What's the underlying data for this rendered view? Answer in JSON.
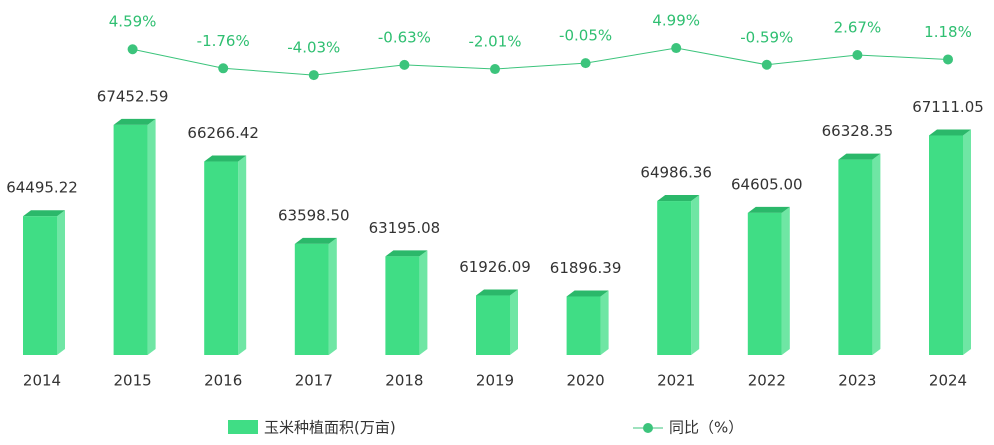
{
  "chart_data": {
    "type": "bar",
    "categories": [
      "2014",
      "2015",
      "2016",
      "2017",
      "2018",
      "2019",
      "2020",
      "2021",
      "2022",
      "2023",
      "2024"
    ],
    "series": [
      {
        "name": "玉米种植面积(万亩)",
        "color": "#40dd85",
        "values": [
          64495.22,
          67452.59,
          66266.42,
          63598.5,
          63195.08,
          61926.09,
          61896.39,
          64986.36,
          64605.0,
          66328.35,
          67111.05
        ],
        "value_labels": [
          "64495.22",
          "67452.59",
          "66266.42",
          "63598.50",
          "63195.08",
          "61926.09",
          "61896.39",
          "64986.36",
          "64605.00",
          "66328.35",
          "67111.05"
        ]
      },
      {
        "name": "同比（%）",
        "color": "#3cc47c",
        "axis": "y2",
        "type": "line",
        "values": [
          null,
          4.59,
          -1.76,
          -4.03,
          -0.63,
          -2.01,
          -0.05,
          4.99,
          -0.59,
          2.67,
          1.18
        ],
        "value_labels": [
          null,
          "4.59%",
          "-1.76%",
          "-4.03%",
          "-0.63%",
          "-2.01%",
          "-0.05%",
          "4.99%",
          "-0.59%",
          "2.67%",
          "1.18%"
        ]
      }
    ],
    "ylim": [
      60000,
      68000
    ],
    "y2lim": [
      -10,
      10
    ]
  }
}
